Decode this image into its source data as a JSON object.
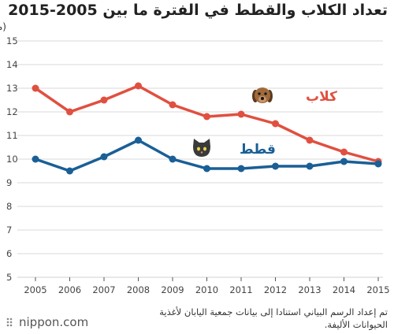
{
  "title": "تعداد الكلاب والقطط في الفترة ما بين 2005-2015",
  "source_note": "تم إعداد الرسم البياني استنادا إلى بيانات جمعية اليابان لأغذية الحيوانات الأليفة.",
  "brand": "nippon.com",
  "chart_data": {
    "type": "line",
    "ylabel": "(مليون)",
    "xlabel": "",
    "ylim": [
      5,
      15
    ],
    "yticks": [
      5,
      6,
      7,
      8,
      9,
      10,
      11,
      12,
      13,
      14,
      15
    ],
    "grid": true,
    "categories": [
      "2005",
      "2006",
      "2007",
      "2008",
      "2009",
      "2010",
      "2011",
      "2012",
      "2013",
      "2014",
      "2015"
    ],
    "series": [
      {
        "name": "كلاب",
        "color": "#e05040",
        "icon": "dog-face-icon",
        "values": [
          13.0,
          12.0,
          12.5,
          13.1,
          12.3,
          11.8,
          11.9,
          11.5,
          10.8,
          10.3,
          9.9
        ]
      },
      {
        "name": "قطط",
        "color": "#1a5f96",
        "icon": "cat-face-icon",
        "values": [
          10.0,
          9.5,
          10.1,
          10.8,
          10.0,
          9.6,
          9.6,
          9.7,
          9.7,
          9.9,
          9.8
        ]
      }
    ]
  },
  "colors": {
    "grid": "#d9d9d9",
    "axis": "#555555"
  }
}
